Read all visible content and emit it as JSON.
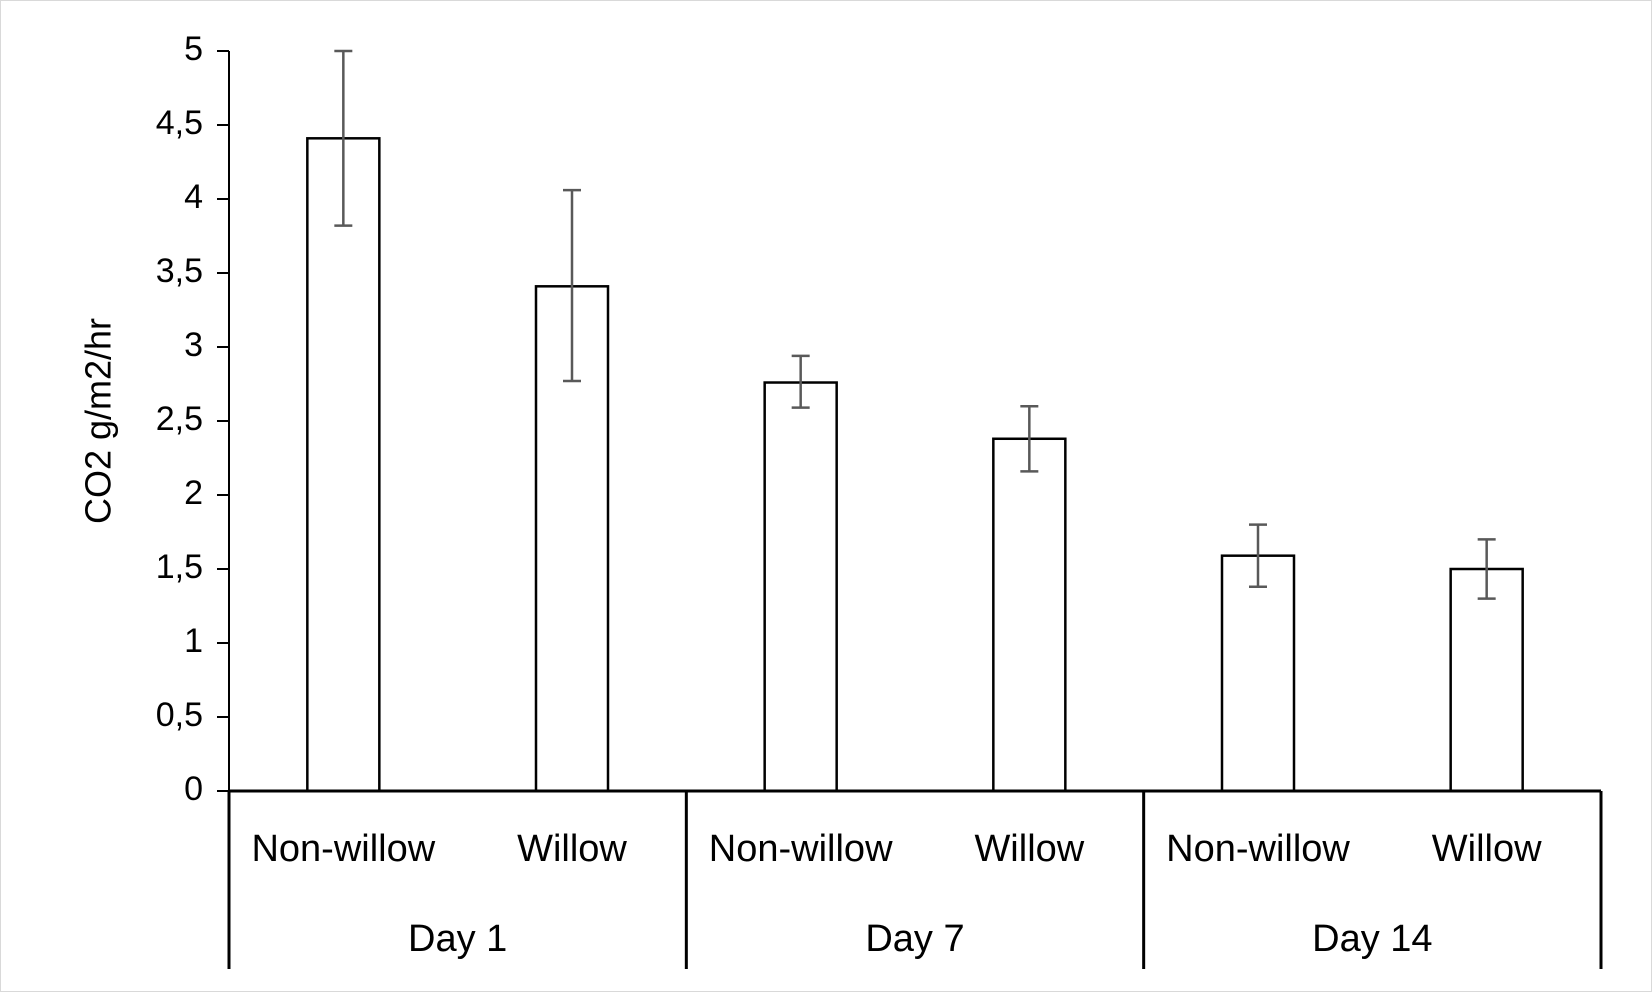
{
  "chart_data": {
    "type": "bar",
    "title": "",
    "xlabel": "",
    "ylabel": "CO2 g/m2/hr",
    "ylim": [
      0,
      5
    ],
    "yticks": [
      0,
      0.5,
      1,
      1.5,
      2,
      2.5,
      3,
      3.5,
      4,
      4.5,
      5
    ],
    "ytick_labels": [
      "0",
      "0,5",
      "1",
      "1,5",
      "2",
      "2,5",
      "3",
      "3,5",
      "4",
      "4,5",
      "5"
    ],
    "grid": false,
    "legend": "none",
    "groups": [
      "Day 1",
      "Day 7",
      "Day 14"
    ],
    "categories": [
      "Non-willow",
      "Willow",
      "Non-willow",
      "Willow",
      "Non-willow",
      "Willow"
    ],
    "values": [
      4.41,
      3.41,
      2.76,
      2.38,
      1.59,
      1.5
    ],
    "error_low": [
      3.82,
      2.77,
      2.59,
      2.16,
      1.38,
      1.3
    ],
    "error_high": [
      5.0,
      4.06,
      2.94,
      2.6,
      1.8,
      1.7
    ],
    "colors": {
      "bar_fill": "#ffffff",
      "bar_stroke": "#000000",
      "error_bar": "#595959",
      "axis": "#000000",
      "frame": "#d9d9d9"
    }
  }
}
